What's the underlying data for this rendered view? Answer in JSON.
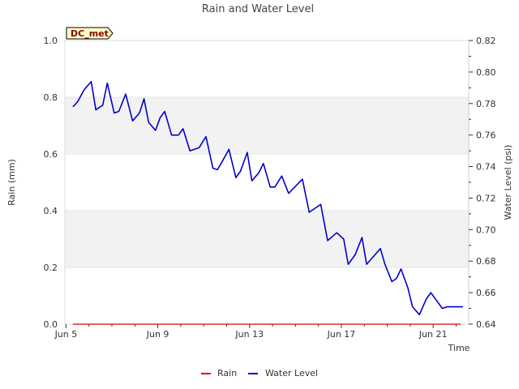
{
  "chart_data": {
    "type": "line",
    "title": "Rain and Water Level",
    "site_label": "DC_met",
    "xlabel": "Time",
    "ylabel_left": "Rain (mm)",
    "ylabel_right": "Water Level (psi)",
    "x_ticks": [
      {
        "day": 5,
        "label": "Jun 5"
      },
      {
        "day": 9,
        "label": "Jun 9"
      },
      {
        "day": 13,
        "label": "Jun 13"
      },
      {
        "day": 17,
        "label": "Jun 17"
      },
      {
        "day": 21,
        "label": "Jun 21"
      }
    ],
    "xlim": [
      4.95,
      22.55
    ],
    "ylim_left": [
      0.0,
      1.0
    ],
    "ylim_right": [
      0.64,
      0.82
    ],
    "y_left_ticks": [
      "0.0",
      "0.2",
      "0.4",
      "0.6",
      "0.8",
      "1.0"
    ],
    "y_right_ticks": [
      "0.64",
      "0.66",
      "0.68",
      "0.70",
      "0.72",
      "0.74",
      "0.76",
      "0.78",
      "0.80",
      "0.82"
    ],
    "legend": [
      {
        "name": "Rain",
        "color": "#dd0000"
      },
      {
        "name": "Water Level",
        "color": "#0000cc"
      }
    ],
    "series": [
      {
        "name": "Rain",
        "axis": "left",
        "color": "#dd0000",
        "x": [
          5.3,
          22.2
        ],
        "values": [
          0.0,
          0.0
        ]
      },
      {
        "name": "Water Level",
        "axis": "right",
        "color": "#0000cc",
        "x": [
          5.3,
          5.5,
          5.8,
          6.1,
          6.3,
          6.6,
          6.8,
          7.1,
          7.3,
          7.6,
          7.9,
          8.2,
          8.4,
          8.6,
          8.9,
          9.1,
          9.3,
          9.6,
          9.9,
          10.1,
          10.4,
          10.8,
          11.1,
          11.4,
          11.6,
          11.8,
          12.1,
          12.4,
          12.6,
          12.9,
          13.1,
          13.4,
          13.6,
          13.9,
          14.1,
          14.4,
          14.7,
          14.9,
          15.3,
          15.6,
          15.9,
          16.1,
          16.4,
          16.8,
          17.1,
          17.3,
          17.6,
          17.9,
          18.1,
          18.4,
          18.7,
          18.9,
          19.2,
          19.4,
          19.6,
          19.9,
          20.1,
          20.4,
          20.7,
          20.9,
          21.2,
          21.4,
          21.6,
          21.9,
          22.1,
          22.3
        ],
        "values": [
          0.778,
          0.781,
          0.789,
          0.794,
          0.776,
          0.779,
          0.793,
          0.774,
          0.775,
          0.786,
          0.769,
          0.774,
          0.783,
          0.768,
          0.763,
          0.771,
          0.775,
          0.76,
          0.76,
          0.764,
          0.75,
          0.752,
          0.759,
          0.739,
          0.738,
          0.743,
          0.751,
          0.733,
          0.737,
          0.749,
          0.731,
          0.736,
          0.742,
          0.727,
          0.727,
          0.734,
          0.723,
          0.726,
          0.732,
          0.711,
          0.714,
          0.716,
          0.693,
          0.698,
          0.694,
          0.678,
          0.684,
          0.695,
          0.678,
          0.683,
          0.688,
          0.678,
          0.667,
          0.669,
          0.675,
          0.663,
          0.651,
          0.646,
          0.656,
          0.66,
          0.654,
          0.65,
          0.651,
          0.651,
          0.651,
          0.651
        ]
      }
    ]
  }
}
